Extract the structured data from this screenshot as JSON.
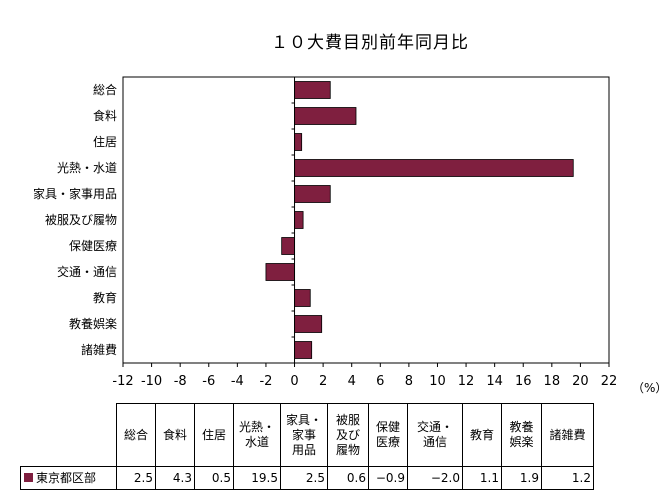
{
  "colors": {
    "bar": "#7f1f3f",
    "bar_border": "#000000"
  },
  "chart_data": {
    "type": "bar",
    "orientation": "horizontal",
    "title": "１０大費目別前年同月比",
    "unit": "（%）",
    "categories": [
      "総合",
      "食料",
      "住居",
      "光熱・水道",
      "家具・家事用品",
      "被服及び履物",
      "保健医療",
      "交通・通信",
      "教育",
      "教養娯楽",
      "諸雑費"
    ],
    "series": [
      {
        "name": "東京都区部",
        "values": [
          2.5,
          4.3,
          0.5,
          19.5,
          2.5,
          0.6,
          -0.9,
          -2.0,
          1.1,
          1.9,
          1.2
        ]
      }
    ],
    "xlim": [
      -12,
      22
    ],
    "xticks": [
      -12,
      -10,
      -8,
      -6,
      -4,
      -2,
      0,
      2,
      4,
      6,
      8,
      10,
      12,
      14,
      16,
      18,
      20,
      22
    ],
    "grid": false,
    "legend": "table"
  },
  "table": {
    "headers": [
      "総合",
      "食料",
      "住居",
      "光熱・\n水道",
      "家具・\n家事\n用品",
      "被服\n及び\n履物",
      "保健\n医療",
      "交通・\n通信",
      "教育",
      "教養\n娯楽",
      "諸雑費"
    ],
    "row_label": "東京都区部",
    "cells": [
      "2.5",
      "4.3",
      "0.5",
      "19.5",
      "2.5",
      "0.6",
      "−0.9",
      "−2.0",
      "1.1",
      "1.9",
      "1.2"
    ]
  }
}
